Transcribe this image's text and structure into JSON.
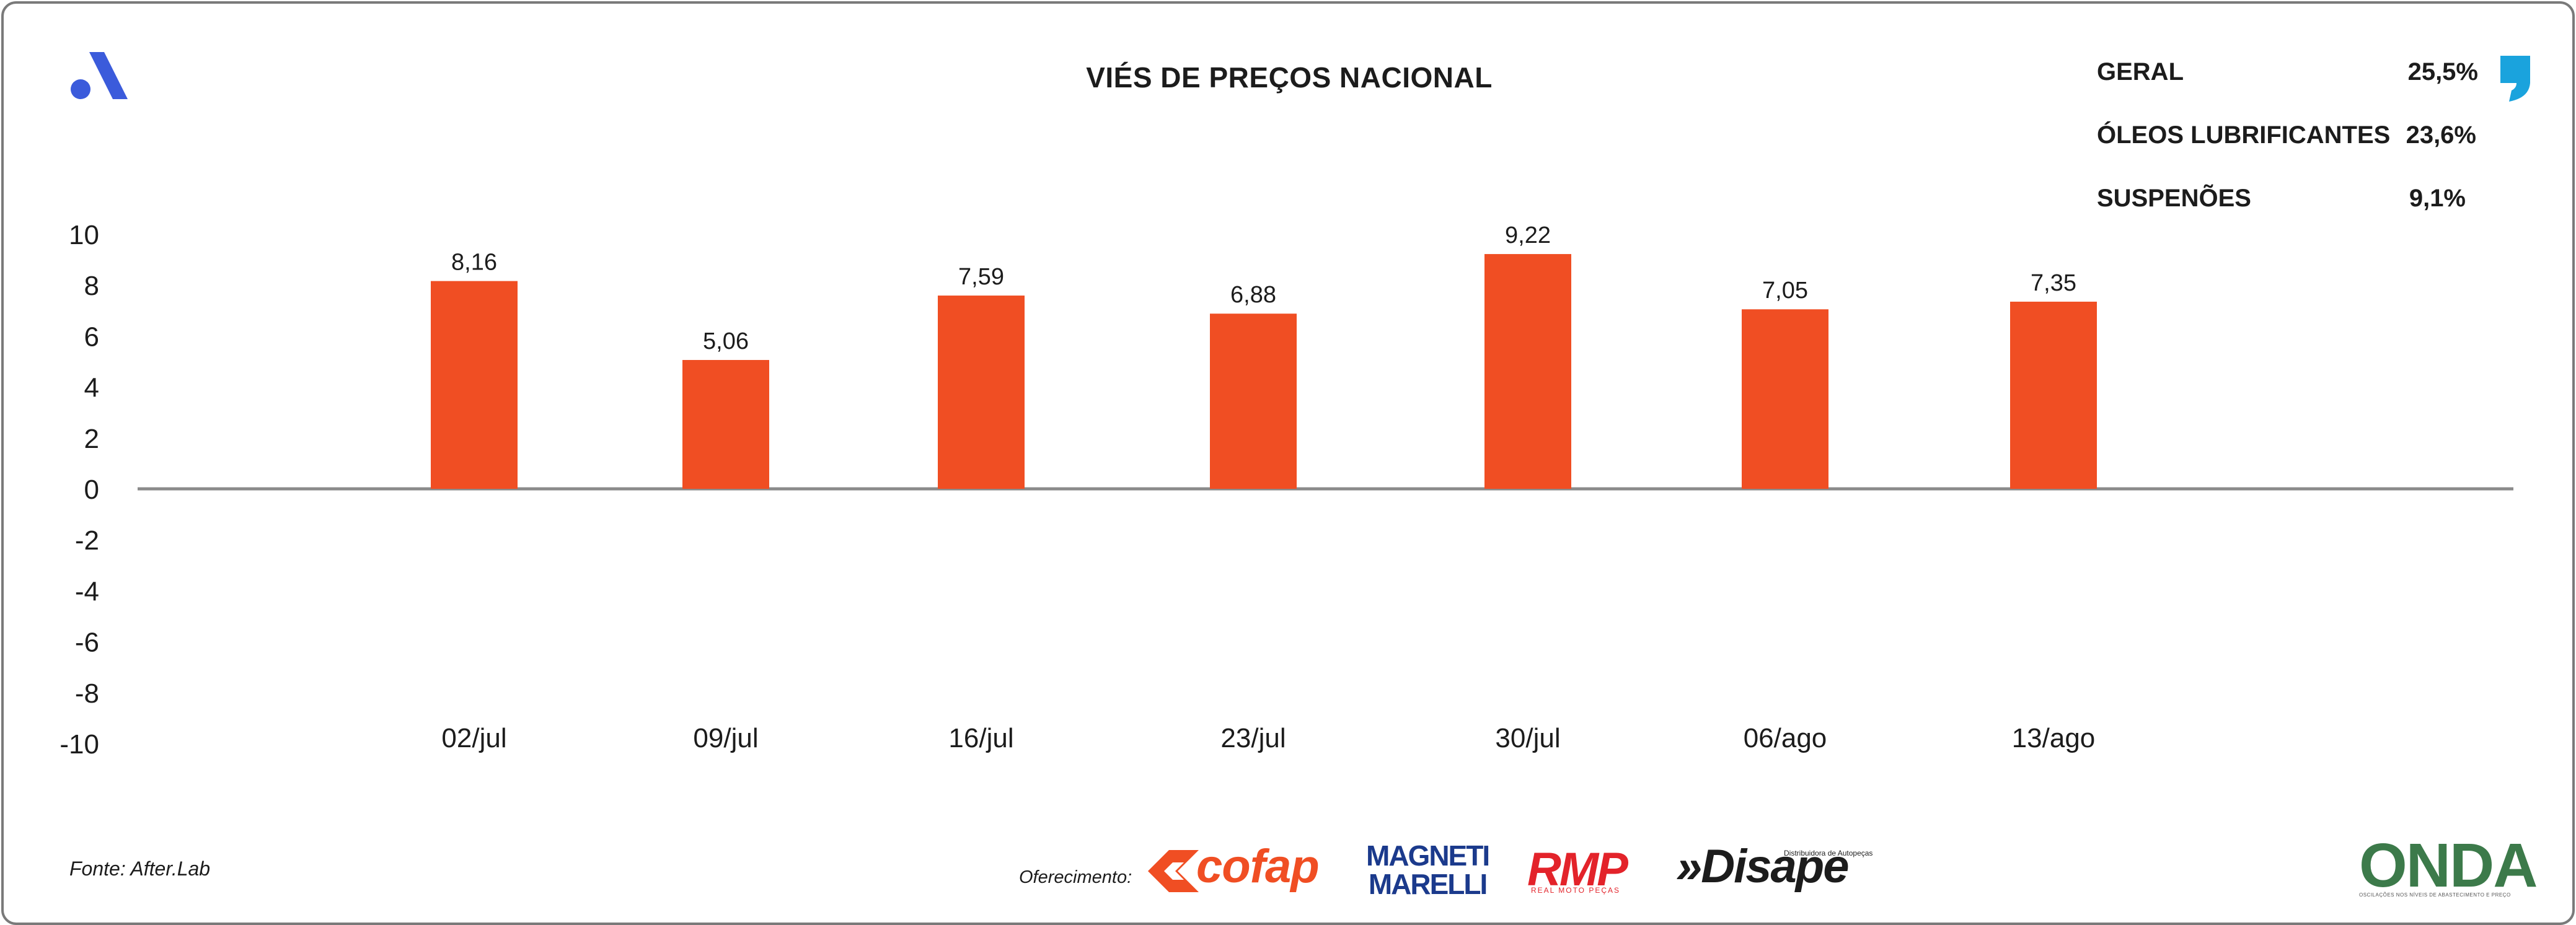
{
  "header": {
    "title": "VIÉS DE PREÇOS NACIONAL"
  },
  "stats": [
    {
      "label": "GERAL",
      "value": "25,5%"
    },
    {
      "label": "ÓLEOS LUBRIFICANTES",
      "value": "23,6%"
    },
    {
      "label": "SUSPENÕES",
      "value": "9,1%"
    }
  ],
  "chart_data": {
    "type": "bar",
    "categories": [
      "02/jul",
      "09/jul",
      "16/jul",
      "23/jul",
      "30/jul",
      "06/ago",
      "13/ago"
    ],
    "values": [
      8.16,
      5.06,
      7.59,
      6.88,
      9.22,
      7.05,
      7.35
    ],
    "value_labels": [
      "8,16",
      "5,06",
      "7,59",
      "6,88",
      "9,22",
      "7,05",
      "7,35"
    ],
    "ylim": [
      -10,
      10
    ],
    "yticks": [
      10,
      8,
      6,
      4,
      2,
      0,
      -2,
      -4,
      -6,
      -8,
      -10
    ],
    "grid": false,
    "bar_color": "#f04e23"
  },
  "footer": {
    "source": "Fonte: After.Lab",
    "sponsor_label": "Oferecimento:",
    "sponsors": {
      "cofap": "cofap",
      "magneti_line1": "MAGNETI",
      "magneti_line2": "MARELLI",
      "rmp": "RMP",
      "rmp_sub": "REAL MOTO PEÇAS",
      "disape": "»Disape",
      "disape_sub": "Distribuidora de Autopeças"
    },
    "onda": "ONDA",
    "onda_sub": "OSCILAÇÕES NOS NÍVEIS DE ABASTECIMENTO E PREÇO"
  },
  "colors": {
    "accent": "#f04e23",
    "logo_blue": "#3b5bdb",
    "quote_blue": "#1aa3dd",
    "axis": "#8a8a8a"
  }
}
